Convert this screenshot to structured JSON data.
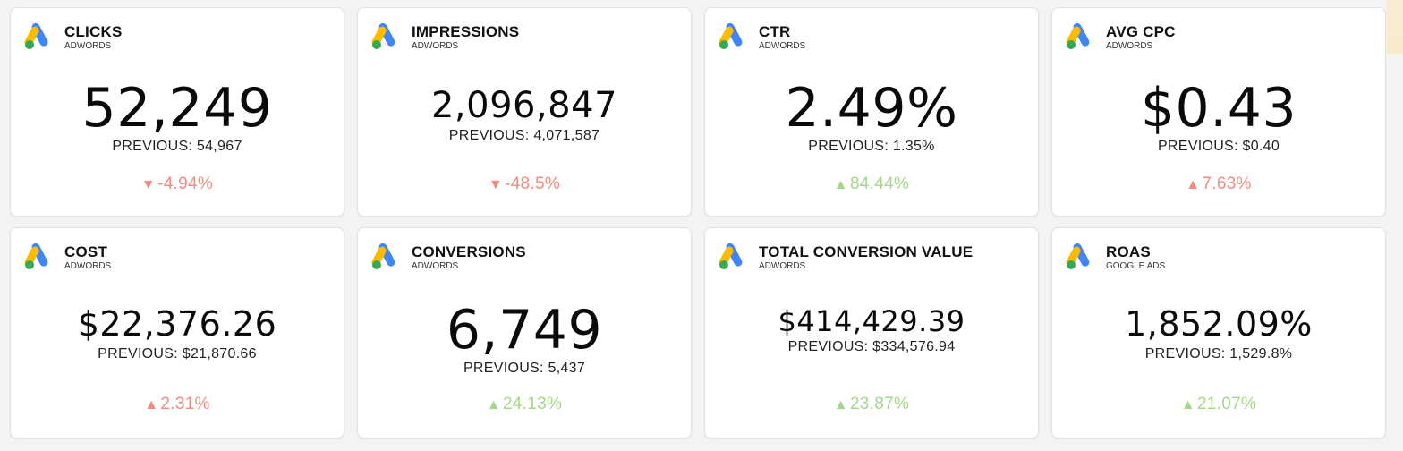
{
  "cards": [
    {
      "title": "CLICKS",
      "source": "ADWORDS",
      "value": "52,249",
      "previous": "PREVIOUS: 54,967",
      "change": "-4.94%",
      "direction": "down"
    },
    {
      "title": "IMPRESSIONS",
      "source": "ADWORDS",
      "value": "2,096,847",
      "previous": "PREVIOUS: 4,071,587",
      "change": "-48.5%",
      "direction": "down"
    },
    {
      "title": "CTR",
      "source": "ADWORDS",
      "value": "2.49%",
      "previous": "PREVIOUS: 1.35%",
      "change": "84.44%",
      "direction": "up-good"
    },
    {
      "title": "AVG CPC",
      "source": "ADWORDS",
      "value": "$0.43",
      "previous": "PREVIOUS: $0.40",
      "change": "7.63%",
      "direction": "up-bad"
    },
    {
      "title": "COST",
      "source": "ADWORDS",
      "value": "$22,376.26",
      "previous": "PREVIOUS: $21,870.66",
      "change": "2.31%",
      "direction": "up-bad"
    },
    {
      "title": "CONVERSIONS",
      "source": "ADWORDS",
      "value": "6,749",
      "previous": "PREVIOUS: 5,437",
      "change": "24.13%",
      "direction": "up-good"
    },
    {
      "title": "TOTAL CONVERSION VALUE",
      "source": "ADWORDS",
      "value": "$414,429.39",
      "previous": "PREVIOUS: $334,576.94",
      "change": "23.87%",
      "direction": "up-good"
    },
    {
      "title": "ROAS",
      "source": "GOOGLE ADS",
      "value": "1,852.09%",
      "previous": "PREVIOUS: 1,529.8%",
      "change": "21.07%",
      "direction": "up-good"
    }
  ],
  "icons": {
    "logo": "google-ads-logo",
    "down": "triangle-down-icon",
    "up": "triangle-up-icon"
  },
  "colors": {
    "negative": "#f28b82",
    "positive": "#a5d68a",
    "logo_blue": "#4285f4",
    "logo_yellow": "#fbbc04",
    "logo_green": "#34a853"
  }
}
